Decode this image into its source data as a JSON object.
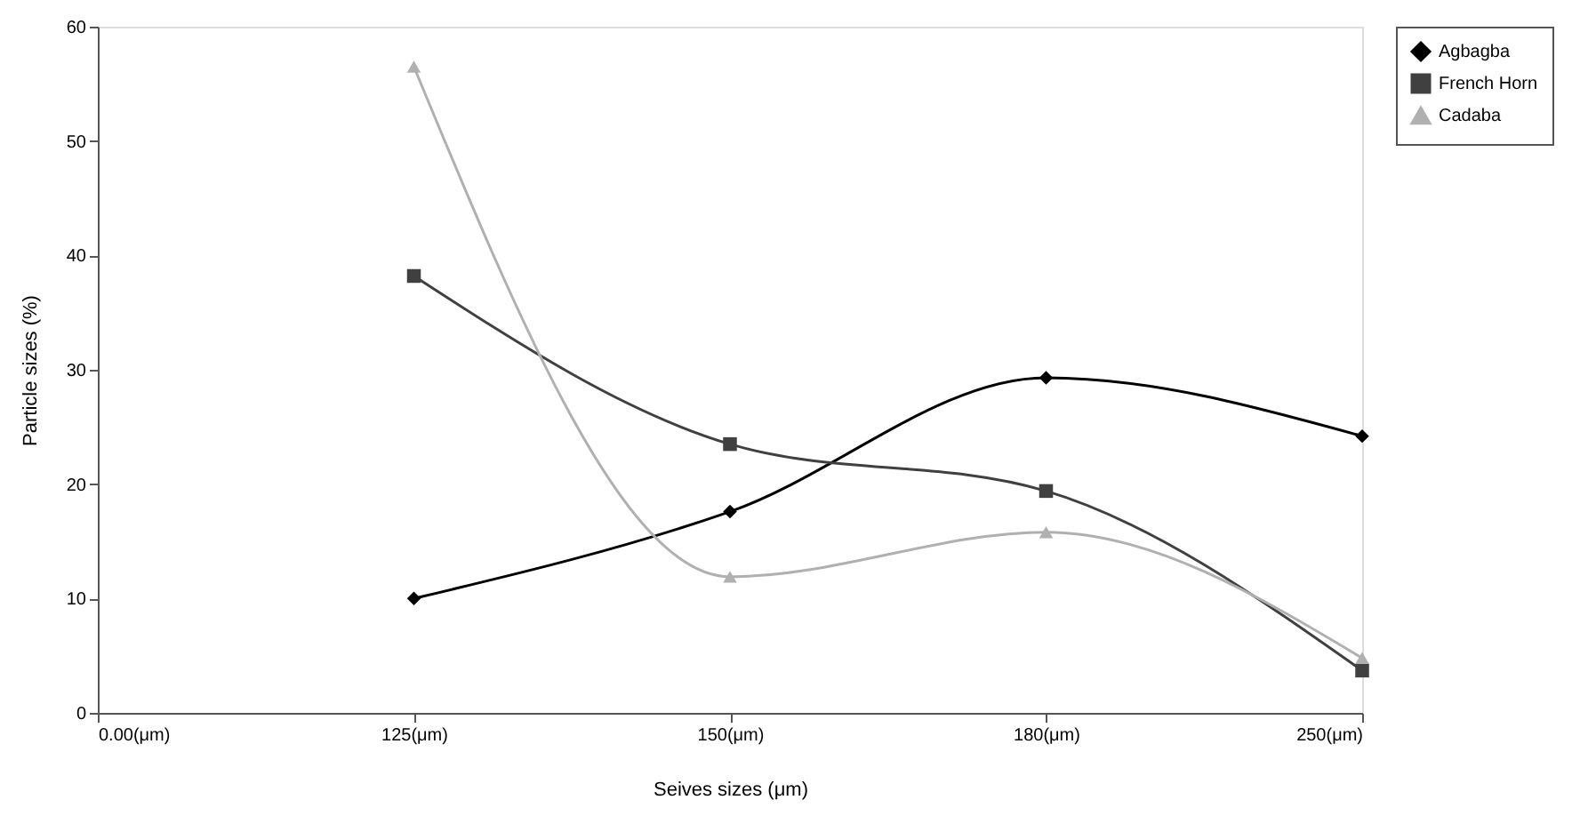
{
  "chart_data": {
    "type": "line",
    "xlabel": "Seives sizes (μm)",
    "ylabel": "Particle sizes (%)",
    "categories": [
      "0.00(μm)",
      "125(μm)",
      "150(μm)",
      "180(μm)",
      "250(μm)"
    ],
    "series": [
      {
        "name": "Agbagba",
        "color": "#000000",
        "marker": "diamond",
        "values": [
          null,
          10,
          17.6,
          29.3,
          24.2
        ]
      },
      {
        "name": "French Horn",
        "color": "#404040",
        "marker": "square",
        "values": [
          null,
          38.2,
          23.5,
          19.4,
          3.7
        ]
      },
      {
        "name": "Cadaba",
        "color": "#b0b0b0",
        "marker": "triangle",
        "values": [
          null,
          56.5,
          11.9,
          15.8,
          4.8
        ]
      }
    ],
    "ylim": [
      0,
      60
    ],
    "yticks": [
      0,
      10,
      20,
      30,
      40,
      50,
      60
    ],
    "grid": false,
    "legend": "right",
    "line_style": "solid"
  }
}
